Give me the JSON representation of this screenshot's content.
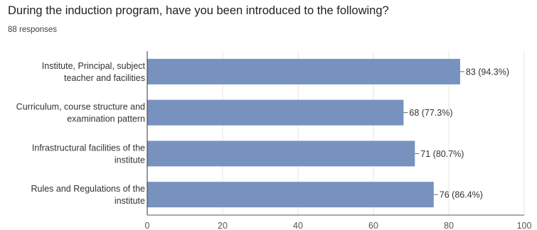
{
  "header": {
    "title": "During the induction program, have you been introduced to the following?",
    "subtitle": "88 responses"
  },
  "chart_data": {
    "type": "bar",
    "orientation": "horizontal",
    "categories": [
      [
        "Institute, Principal, subject",
        "teacher and facilities"
      ],
      [
        "Curriculum, course structure and",
        "examination pattern"
      ],
      [
        "Infrastructural facilities of the",
        "institute"
      ],
      [
        "Rules and Regulations of the",
        "institute"
      ]
    ],
    "values": [
      83,
      68,
      71,
      76
    ],
    "data_labels": [
      "83 (94.3%)",
      "68 (77.3%)",
      "71 (80.7%)",
      "76 (86.4%)"
    ],
    "xlim": [
      0,
      100
    ],
    "xticks": [
      0,
      20,
      40,
      60,
      80,
      100
    ],
    "bar_color": "#7792bf",
    "grid": true
  }
}
